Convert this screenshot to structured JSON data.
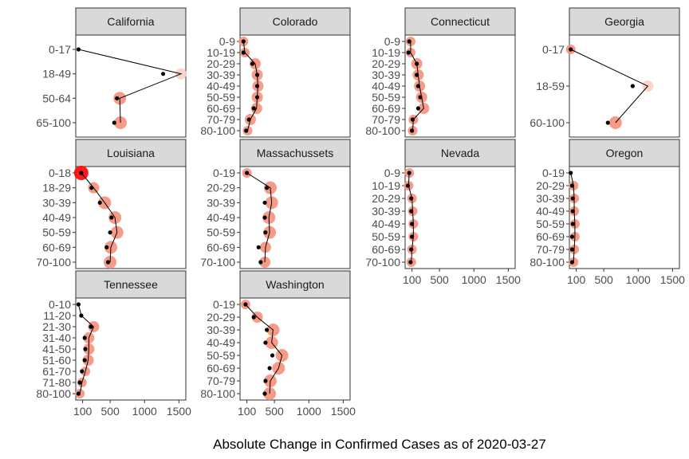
{
  "chart_data": {
    "type": "scatter",
    "xlabel": "Absolute Change in Confirmed Cases as of 2020-03-27",
    "xlim": [
      0,
      1600
    ],
    "xticks": [
      100,
      500,
      1000,
      1500
    ],
    "xtick_labels": [
      "100",
      "500",
      "1000",
      "1500"
    ],
    "grid": false,
    "colors": {
      "strip_fill": "#d9d9d9",
      "panel_border": "#333333",
      "dot": "#000000",
      "bubble_light": "#fbd0c2",
      "bubble_mid": "#f4907a",
      "bubble_dark": "#ff0000"
    },
    "panels": [
      {
        "state": "California",
        "categories": [
          "0-17",
          "18-49",
          "50-64",
          "65-100"
        ],
        "path": [
          40,
          1530,
          640,
          650
        ],
        "dots": [
          40,
          1270,
          600,
          560
        ],
        "bubbles": [
          null,
          1530,
          640,
          650
        ]
      },
      {
        "state": "Colorado",
        "categories": [
          "0-9",
          "10-19",
          "20-29",
          "30-39",
          "40-49",
          "50-59",
          "60-69",
          "70-79",
          "80-100"
        ],
        "path": [
          50,
          70,
          220,
          250,
          260,
          250,
          240,
          150,
          110
        ],
        "dots": [
          50,
          50,
          180,
          250,
          250,
          250,
          200,
          130,
          90
        ],
        "bubbles": [
          50,
          70,
          220,
          250,
          260,
          250,
          240,
          150,
          110
        ]
      },
      {
        "state": "Connecticut",
        "categories": [
          "0-9",
          "10-19",
          "20-29",
          "30-39",
          "40-49",
          "50-59",
          "60-69",
          "70-79",
          "80-100"
        ],
        "path": [
          80,
          80,
          170,
          190,
          210,
          240,
          270,
          120,
          110
        ],
        "dots": [
          60,
          50,
          170,
          170,
          190,
          220,
          190,
          110,
          100
        ],
        "bubbles": [
          80,
          80,
          170,
          190,
          210,
          240,
          270,
          120,
          110
        ]
      },
      {
        "state": "Georgia",
        "categories": [
          "0-17",
          "18-59",
          "60-100"
        ],
        "path": [
          20,
          1140,
          670
        ],
        "dots": [
          20,
          920,
          560
        ],
        "bubbles": [
          20,
          1140,
          670
        ]
      },
      {
        "state": "Louisiana",
        "categories": [
          "0-18",
          "18-29",
          "30-39",
          "40-49",
          "50-59",
          "60-69",
          "70-100"
        ],
        "path": [
          80,
          260,
          420,
          570,
          600,
          510,
          500
        ],
        "dots": [
          80,
          230,
          350,
          520,
          500,
          450,
          470
        ],
        "bubbles": [
          80,
          260,
          420,
          570,
          600,
          510,
          500
        ]
      },
      {
        "state": "Massachussets",
        "categories": [
          "0-19",
          "20-29",
          "30-39",
          "40-49",
          "50-59",
          "60-69",
          "70-100"
        ],
        "path": [
          100,
          440,
          460,
          420,
          430,
          370,
          360
        ],
        "dots": [
          100,
          390,
          360,
          360,
          370,
          270,
          300
        ],
        "bubbles": [
          100,
          440,
          460,
          420,
          430,
          370,
          360
        ]
      },
      {
        "state": "Nevada",
        "categories": [
          "0-9",
          "10-19",
          "20-29",
          "30-39",
          "40-49",
          "50-59",
          "60-69",
          "70-100"
        ],
        "path": [
          60,
          50,
          100,
          110,
          120,
          120,
          100,
          90
        ],
        "dots": [
          60,
          40,
          90,
          90,
          100,
          100,
          90,
          80
        ],
        "bubbles": [
          60,
          50,
          100,
          110,
          120,
          120,
          100,
          90
        ]
      },
      {
        "state": "Oregon",
        "categories": [
          "0-19",
          "20-29",
          "30-39",
          "40-49",
          "50-59",
          "60-69",
          "70-79",
          "80-100"
        ],
        "path": [
          20,
          60,
          70,
          70,
          80,
          80,
          70,
          60
        ],
        "dots": [
          20,
          40,
          50,
          50,
          50,
          40,
          40,
          40
        ],
        "bubbles": [
          null,
          60,
          70,
          70,
          80,
          80,
          70,
          60
        ]
      },
      {
        "state": "Tennessee",
        "categories": [
          "0-10",
          "11-20",
          "21-30",
          "31-40",
          "41-50",
          "51-60",
          "61-70",
          "71-80",
          "80-100"
        ],
        "path": [
          40,
          80,
          260,
          190,
          190,
          180,
          140,
          90,
          60
        ],
        "dots": [
          40,
          80,
          220,
          130,
          140,
          130,
          90,
          60,
          40
        ],
        "bubbles": [
          null,
          null,
          260,
          190,
          190,
          180,
          140,
          90,
          60
        ]
      },
      {
        "state": "Washington",
        "categories": [
          "0-19",
          "20-29",
          "30-39",
          "40-49",
          "50-59",
          "60-69",
          "70-79",
          "80-100"
        ],
        "path": [
          80,
          250,
          480,
          460,
          610,
          560,
          440,
          430
        ],
        "dots": [
          80,
          200,
          390,
          370,
          470,
          430,
          370,
          360
        ],
        "bubbles": [
          80,
          250,
          480,
          460,
          610,
          560,
          440,
          430
        ]
      }
    ]
  }
}
